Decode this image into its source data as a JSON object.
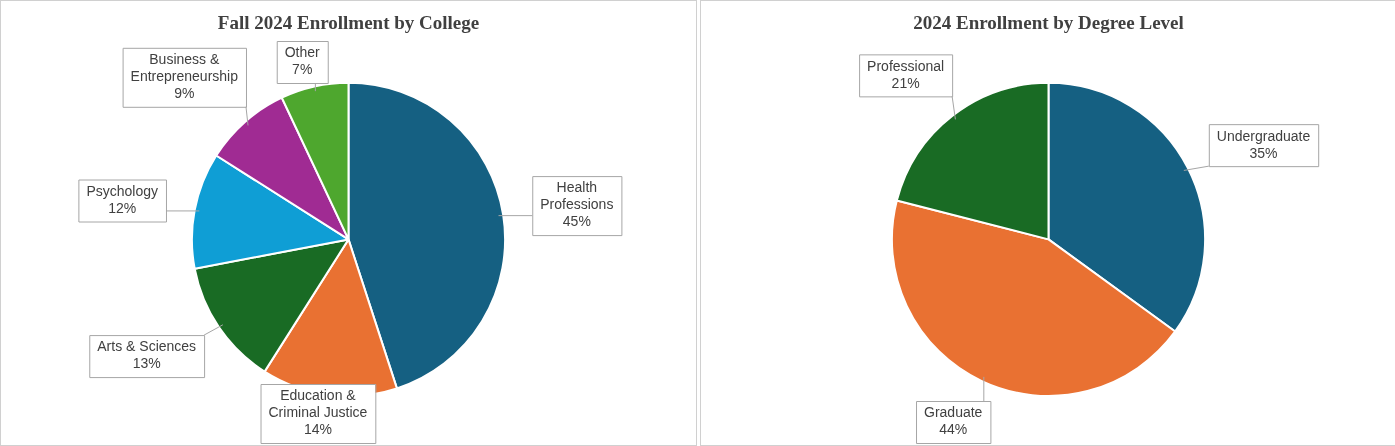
{
  "chart_data": [
    {
      "type": "pie",
      "title": "Fall 2024 Enrollment by College",
      "categories": [
        "Health Professions",
        "Education & Criminal Justice",
        "Arts & Sciences",
        "Psychology",
        "Business & Entrepreneurship",
        "Other"
      ],
      "values": [
        45,
        14,
        13,
        12,
        9,
        7
      ],
      "colors": [
        "#156082",
        "#e97132",
        "#196b24",
        "#0f9ed5",
        "#a02b93",
        "#4ea72e"
      ],
      "value_labels": [
        "45%",
        "14%",
        "13%",
        "12%",
        "9%",
        "7%"
      ]
    },
    {
      "type": "pie",
      "title": "2024 Enrollment by Degree Level",
      "categories": [
        "Undergraduate",
        "Graduate",
        "Professional"
      ],
      "values": [
        35,
        44,
        21
      ],
      "colors": [
        "#156082",
        "#e97132",
        "#196b24"
      ],
      "value_labels": [
        "35%",
        "44%",
        "21%"
      ]
    }
  ]
}
